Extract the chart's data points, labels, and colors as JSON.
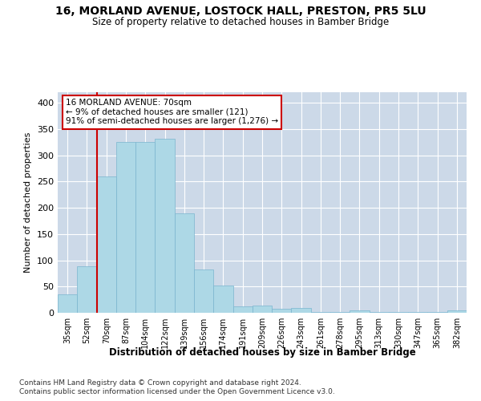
{
  "title": "16, MORLAND AVENUE, LOSTOCK HALL, PRESTON, PR5 5LU",
  "subtitle": "Size of property relative to detached houses in Bamber Bridge",
  "xlabel": "Distribution of detached houses by size in Bamber Bridge",
  "ylabel": "Number of detached properties",
  "footnote1": "Contains HM Land Registry data © Crown copyright and database right 2024.",
  "footnote2": "Contains public sector information licensed under the Open Government Licence v3.0.",
  "annotation_line1": "16 MORLAND AVENUE: 70sqm",
  "annotation_line2": "← 9% of detached houses are smaller (121)",
  "annotation_line3": "91% of semi-detached houses are larger (1,276) →",
  "bar_color": "#add8e6",
  "bar_edge_color": "#7ab5cf",
  "redline_color": "#cc0000",
  "annotation_box_color": "#cc0000",
  "background_color": "#ffffff",
  "grid_color": "#ccd9e8",
  "categories": [
    "35sqm",
    "52sqm",
    "70sqm",
    "87sqm",
    "104sqm",
    "122sqm",
    "139sqm",
    "156sqm",
    "174sqm",
    "191sqm",
    "209sqm",
    "226sqm",
    "243sqm",
    "261sqm",
    "278sqm",
    "295sqm",
    "313sqm",
    "330sqm",
    "347sqm",
    "365sqm",
    "382sqm"
  ],
  "values": [
    35,
    88,
    260,
    325,
    325,
    332,
    190,
    82,
    52,
    12,
    13,
    7,
    9,
    1,
    1,
    5,
    1,
    2,
    1,
    1,
    4
  ],
  "ylim": [
    0,
    420
  ],
  "redline_bin": 2,
  "yticks": [
    0,
    50,
    100,
    150,
    200,
    250,
    300,
    350,
    400
  ]
}
